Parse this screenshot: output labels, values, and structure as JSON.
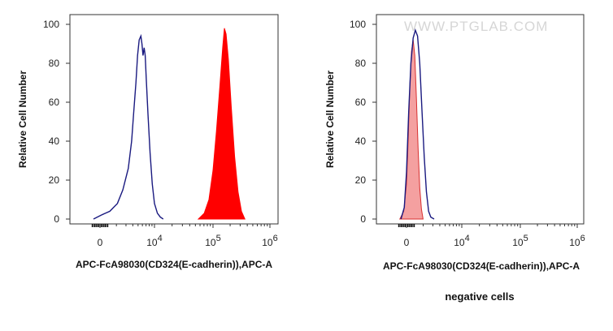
{
  "watermark": "WWW.PTGLAB.COM",
  "caption": "negative cells",
  "chart_data": [
    {
      "type": "histogram",
      "xlabel": "APC-FcA98030(CD324(E-cadherin)),APC-A",
      "ylabel": "Relative Cell Number",
      "x_scale": "biexponential",
      "x_ticks": [
        {
          "label": "0",
          "exp": ""
        },
        {
          "label": "10",
          "exp": "4"
        },
        {
          "label": "10",
          "exp": "5"
        },
        {
          "label": "10",
          "exp": "6"
        }
      ],
      "y_ticks": [
        "0",
        "20",
        "40",
        "60",
        "80",
        "100"
      ],
      "ylim": [
        0,
        100
      ],
      "series": [
        {
          "style": "outline",
          "color": "#1a1a80",
          "points": [
            [
              -0.12,
              0
            ],
            [
              0.02,
              2
            ],
            [
              0.18,
              4
            ],
            [
              0.32,
              8
            ],
            [
              0.42,
              15
            ],
            [
              0.52,
              26
            ],
            [
              0.58,
              40
            ],
            [
              0.62,
              55
            ],
            [
              0.66,
              70
            ],
            [
              0.69,
              84
            ],
            [
              0.72,
              92
            ],
            [
              0.75,
              94
            ],
            [
              0.77,
              90
            ],
            [
              0.79,
              84
            ],
            [
              0.81,
              88
            ],
            [
              0.83,
              84
            ],
            [
              0.85,
              72
            ],
            [
              0.88,
              54
            ],
            [
              0.92,
              34
            ],
            [
              0.96,
              18
            ],
            [
              1.0,
              8
            ],
            [
              1.05,
              3
            ],
            [
              1.1,
              1
            ],
            [
              1.15,
              0
            ]
          ]
        },
        {
          "style": "filled",
          "color": "#ff0000",
          "points": [
            [
              1.75,
              0
            ],
            [
              1.85,
              3
            ],
            [
              1.93,
              10
            ],
            [
              2.0,
              25
            ],
            [
              2.06,
              45
            ],
            [
              2.12,
              68
            ],
            [
              2.17,
              88
            ],
            [
              2.2,
              98
            ],
            [
              2.23,
              95
            ],
            [
              2.27,
              82
            ],
            [
              2.32,
              58
            ],
            [
              2.38,
              32
            ],
            [
              2.44,
              14
            ],
            [
              2.5,
              4
            ],
            [
              2.56,
              0
            ]
          ]
        }
      ]
    },
    {
      "type": "histogram",
      "xlabel": "APC-FcA98030(CD324(E-cadherin)),APC-A",
      "ylabel": "Relative Cell Number",
      "x_scale": "biexponential",
      "x_ticks": [
        {
          "label": "0",
          "exp": ""
        },
        {
          "label": "10",
          "exp": "4"
        },
        {
          "label": "10",
          "exp": "5"
        },
        {
          "label": "10",
          "exp": "6"
        }
      ],
      "y_ticks": [
        "0",
        "20",
        "40",
        "60",
        "80",
        "100"
      ],
      "ylim": [
        0,
        100
      ],
      "series": [
        {
          "style": "filled",
          "color": "#f4a0a0",
          "stroke": "#d83030",
          "points": [
            [
              -0.12,
              0
            ],
            [
              -0.05,
              4
            ],
            [
              0.0,
              18
            ],
            [
              0.03,
              40
            ],
            [
              0.06,
              68
            ],
            [
              0.09,
              86
            ],
            [
              0.12,
              92
            ],
            [
              0.15,
              84
            ],
            [
              0.18,
              62
            ],
            [
              0.21,
              36
            ],
            [
              0.24,
              16
            ],
            [
              0.27,
              5
            ],
            [
              0.3,
              0
            ]
          ]
        },
        {
          "style": "outline",
          "color": "#1a1a80",
          "points": [
            [
              -0.1,
              0
            ],
            [
              -0.04,
              6
            ],
            [
              0.0,
              24
            ],
            [
              0.04,
              55
            ],
            [
              0.08,
              80
            ],
            [
              0.12,
              93
            ],
            [
              0.16,
              97
            ],
            [
              0.2,
              94
            ],
            [
              0.24,
              80
            ],
            [
              0.28,
              56
            ],
            [
              0.32,
              32
            ],
            [
              0.36,
              14
            ],
            [
              0.4,
              4
            ],
            [
              0.44,
              1
            ],
            [
              0.5,
              0
            ]
          ]
        }
      ]
    }
  ]
}
